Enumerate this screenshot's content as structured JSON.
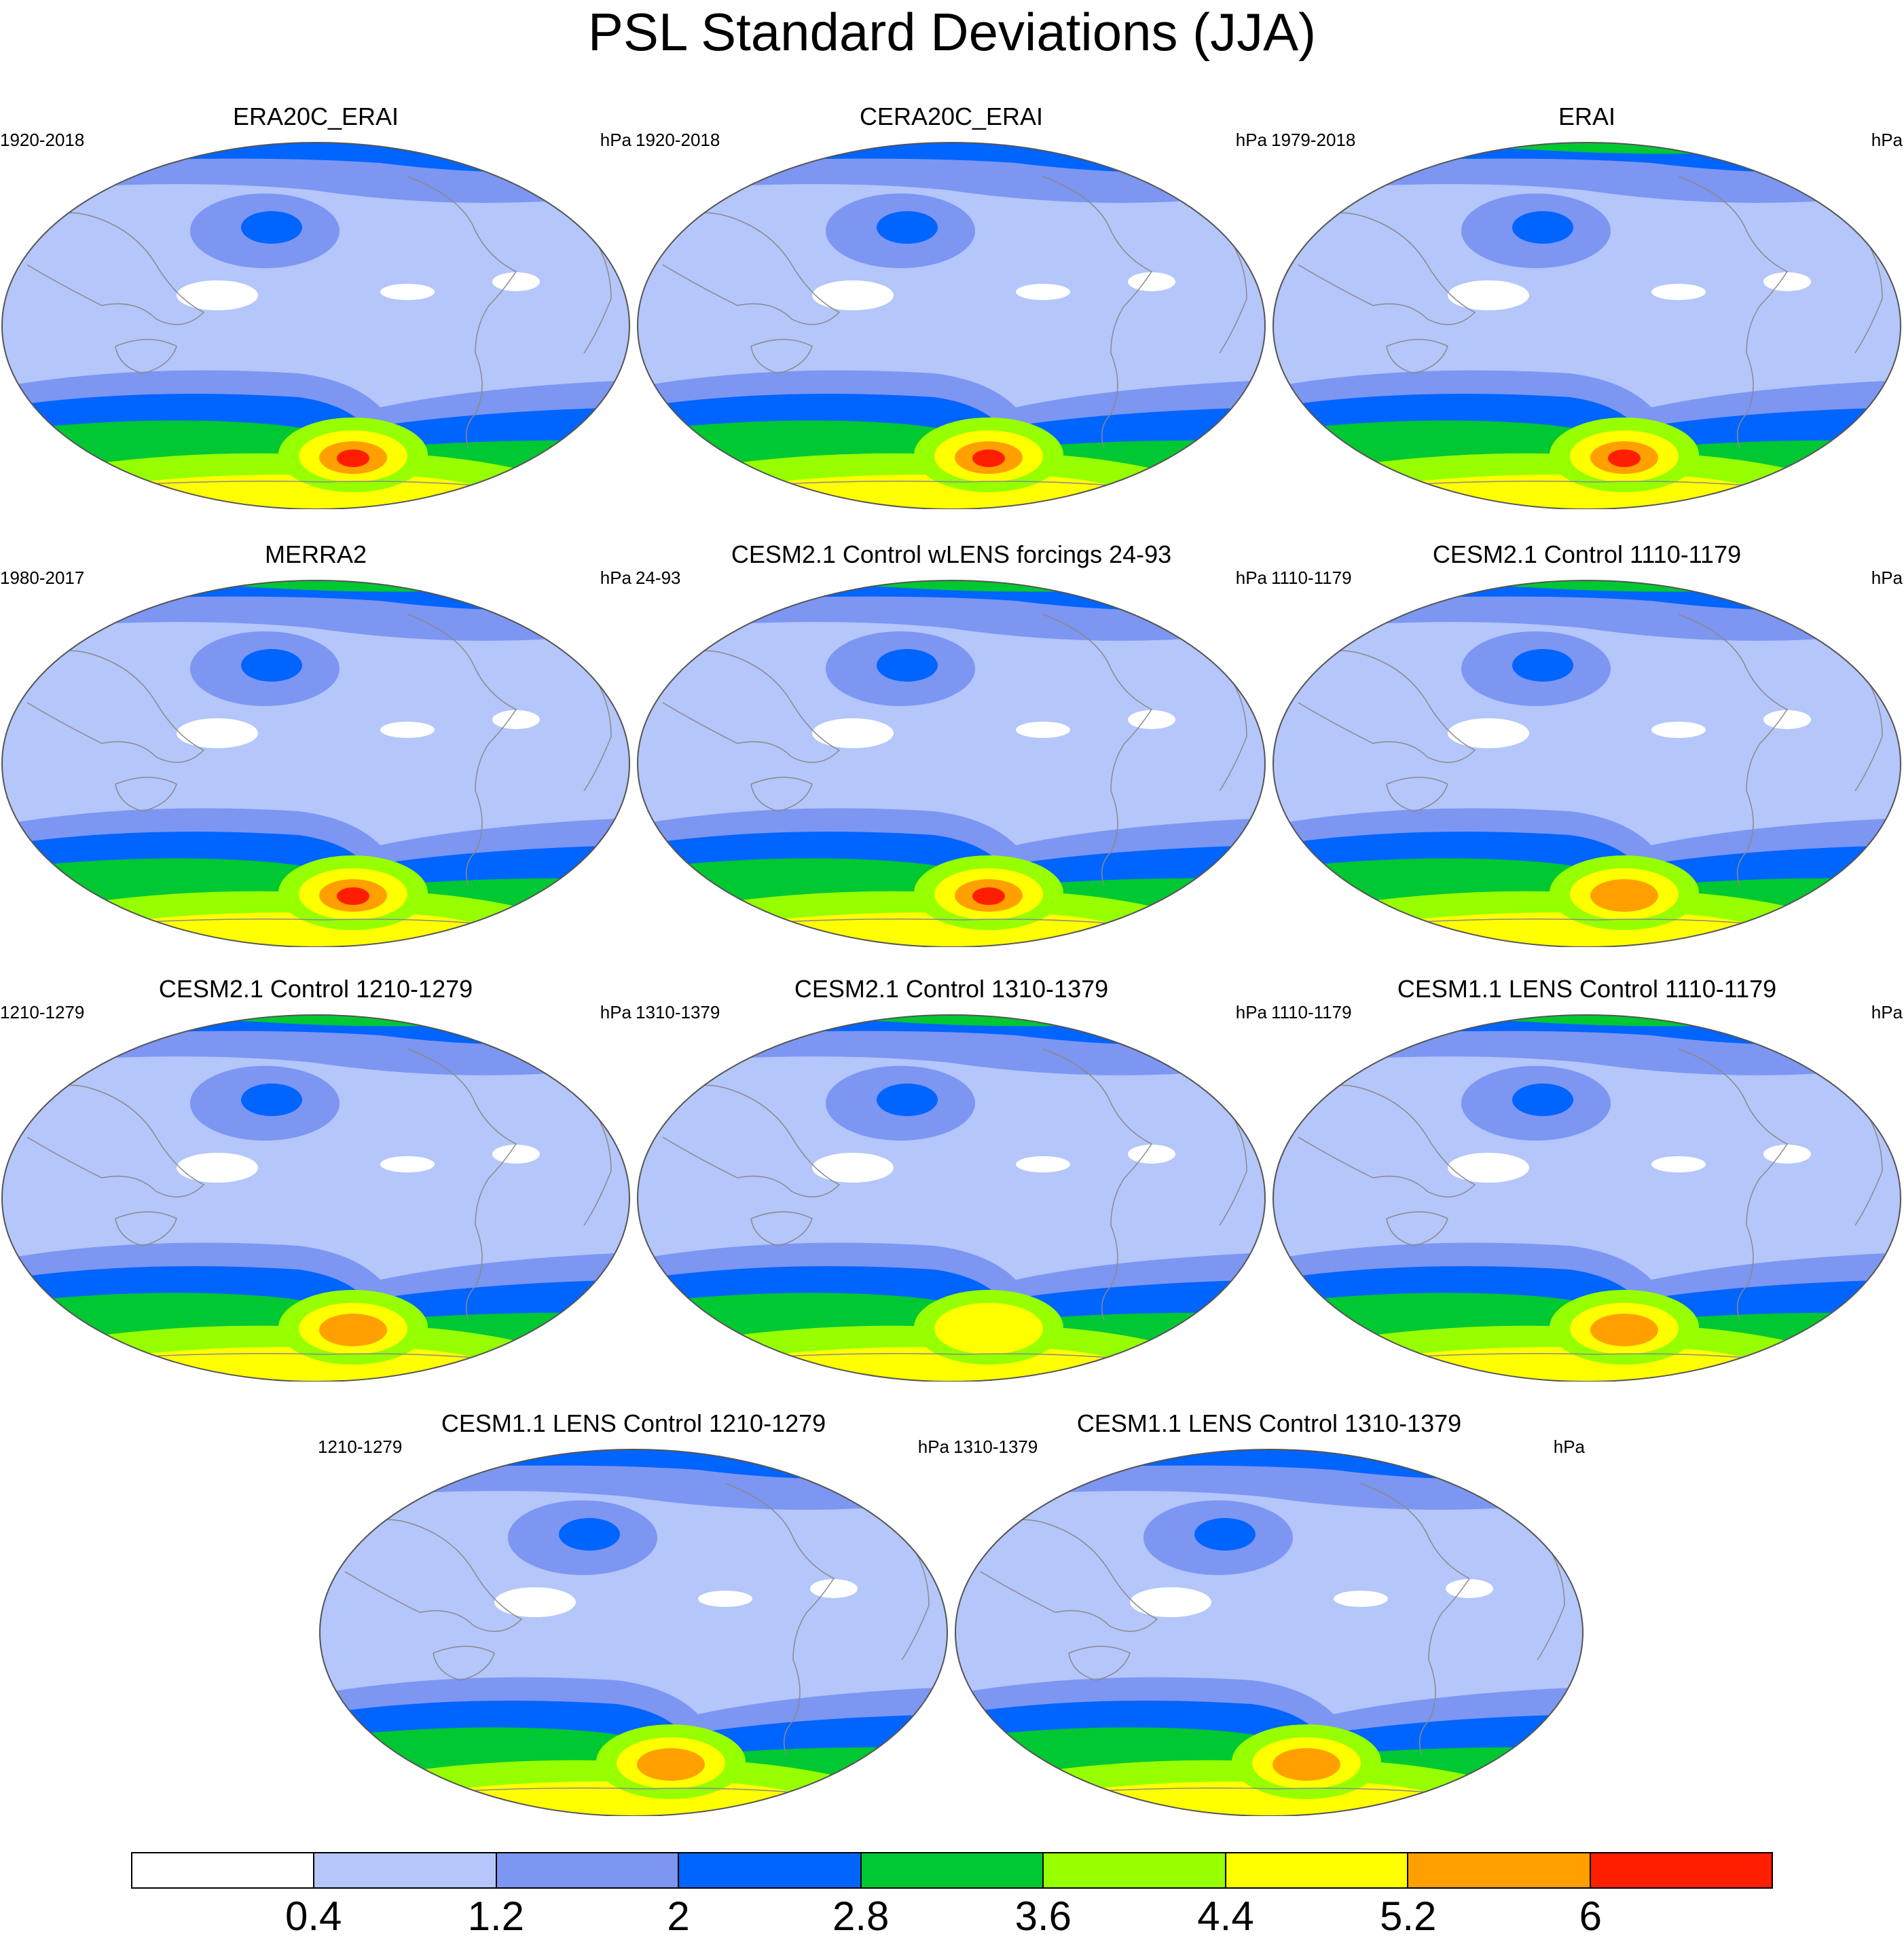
{
  "title": "PSL Standard Deviations (JJA)",
  "units": "hPa",
  "colors": {
    "levels": [
      "#ffffff",
      "#b4c6fa",
      "#7d96f2",
      "#0064ff",
      "#00c832",
      "#96ff00",
      "#ffff00",
      "#ffa000",
      "#ff1e00"
    ],
    "coast": "#8a8a8a",
    "outline": "#555555"
  },
  "colorbar": {
    "labels": [
      "0.4",
      "1.2",
      "2",
      "2.8",
      "3.6",
      "4.4",
      "5.2",
      "6"
    ]
  },
  "panels": [
    {
      "title": "ERA20C_ERAI",
      "years": "1920-2018",
      "units": "hPa",
      "southern_peak_level": 8,
      "north_level": 3
    },
    {
      "title": "CERA20C_ERAI",
      "years": "1920-2018",
      "units": "hPa",
      "southern_peak_level": 8,
      "north_level": 3
    },
    {
      "title": "ERAI",
      "years": "1979-2018",
      "units": "hPa",
      "southern_peak_level": 8,
      "north_level": 4
    },
    {
      "title": "MERRA2",
      "years": "1980-2017",
      "units": "hPa",
      "southern_peak_level": 8,
      "north_level": 4
    },
    {
      "title": "CESM2.1 Control wLENS forcings 24-93",
      "years": "24-93",
      "units": "hPa",
      "southern_peak_level": 8,
      "north_level": 4
    },
    {
      "title": "CESM2.1 Control 1110-1179",
      "years": "1110-1179",
      "units": "hPa",
      "southern_peak_level": 7,
      "north_level": 4
    },
    {
      "title": "CESM2.1 Control 1210-1279",
      "years": "1210-1279",
      "units": "hPa",
      "southern_peak_level": 7,
      "north_level": 4
    },
    {
      "title": "CESM2.1 Control 1310-1379",
      "years": "1310-1379",
      "units": "hPa",
      "southern_peak_level": 6,
      "north_level": 4
    },
    {
      "title": "CESM1.1 LENS Control 1110-1179",
      "years": "1110-1179",
      "units": "hPa",
      "southern_peak_level": 7,
      "north_level": 4
    },
    {
      "title": "CESM1.1 LENS Control 1210-1279",
      "years": "1210-1279",
      "units": "hPa",
      "southern_peak_level": 7,
      "north_level": 3
    },
    {
      "title": "CESM1.1 LENS Control 1310-1379",
      "years": "1310-1379",
      "units": "hPa",
      "southern_peak_level": 7,
      "north_level": 3
    }
  ]
}
